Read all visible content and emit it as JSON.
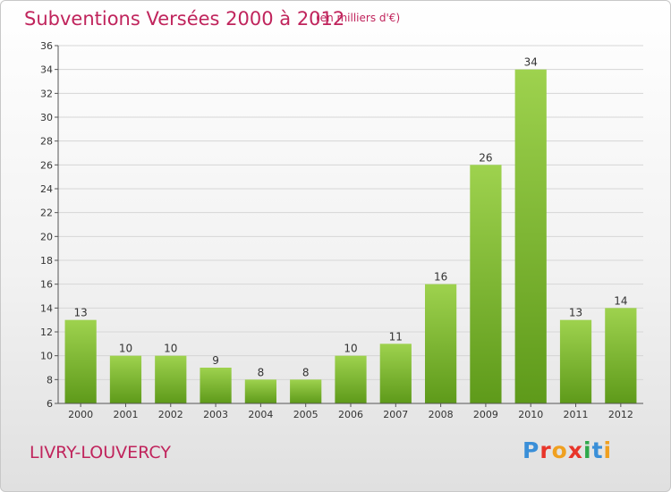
{
  "chart_data": {
    "type": "bar",
    "title": "Subventions Versées 2000 à 2012",
    "subtitle": "(en milliers d'€)",
    "categories": [
      "2000",
      "2001",
      "2002",
      "2003",
      "2004",
      "2005",
      "2006",
      "2007",
      "2008",
      "2009",
      "2010",
      "2011",
      "2012"
    ],
    "values": [
      13,
      10,
      10,
      9,
      8,
      8,
      10,
      11,
      16,
      26,
      34,
      13,
      14
    ],
    "ylim": [
      6,
      36
    ],
    "yticks": [
      6,
      8,
      10,
      12,
      14,
      16,
      18,
      20,
      22,
      24,
      26,
      28,
      30,
      32,
      34,
      36
    ],
    "grid": true,
    "bar_color_top": "#9ed24e",
    "bar_color_bottom": "#5e9a1a"
  },
  "footer": {
    "commune": "LIVRY-LOUVERCY",
    "logo_text": "Proxiti",
    "logo_colors": [
      "#3a8fd8",
      "#e8352a",
      "#f0a020",
      "#e8352a",
      "#2ea84a",
      "#3a8fd8",
      "#f0a020"
    ]
  }
}
